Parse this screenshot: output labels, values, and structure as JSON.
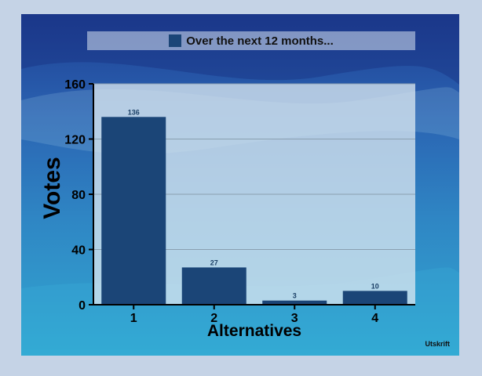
{
  "chart_data": {
    "type": "bar",
    "legend": "Over the next 12 months...",
    "categories": [
      "1",
      "2",
      "3",
      "4"
    ],
    "values": [
      136,
      27,
      3,
      10
    ],
    "data_labels": [
      "136",
      "27",
      "3",
      "10"
    ],
    "xlabel": "Alternatives",
    "ylabel": "Votes",
    "ylim": [
      0,
      160
    ],
    "yticks": [
      0,
      40,
      80,
      120,
      160
    ],
    "grid": true,
    "legend_position": "top-center",
    "bar_color": "#1b4577"
  },
  "footer": {
    "label": "Utskrift"
  }
}
